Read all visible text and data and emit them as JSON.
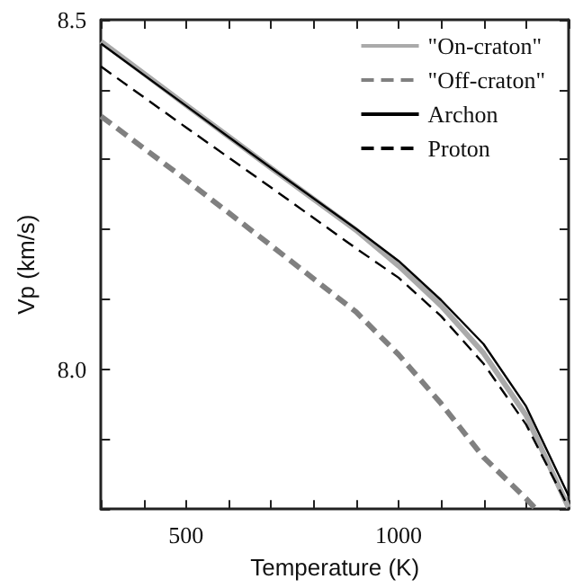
{
  "chart_data": {
    "type": "line",
    "xlabel": "Temperature (K)",
    "ylabel": "Vp (km/s)",
    "x": [
      300,
      500,
      700,
      900,
      1000,
      1100,
      1200,
      1300,
      1400
    ],
    "series": [
      {
        "name": "\"On-craton\"",
        "color": "#aaaaaa",
        "line_style": "solid",
        "values": [
          8.469,
          8.378,
          8.288,
          8.199,
          8.148,
          8.091,
          8.023,
          7.934,
          7.802
        ]
      },
      {
        "name": "\"Off-craton\"",
        "color": "#808080",
        "line_style": "dashed",
        "x": [
          300,
          500,
          700,
          900,
          1000,
          1100,
          1200,
          1300,
          1323
        ],
        "values": [
          8.362,
          8.271,
          8.177,
          8.082,
          8.021,
          7.951,
          7.874,
          7.815,
          7.8
        ]
      },
      {
        "name": "Archon",
        "color": "#000000",
        "line_style": "solid",
        "values": [
          8.466,
          8.377,
          8.288,
          8.201,
          8.155,
          8.099,
          8.036,
          7.947,
          7.819
        ]
      },
      {
        "name": "Proton",
        "color": "#000000",
        "line_style": "dashed",
        "values": [
          8.433,
          8.346,
          8.26,
          8.173,
          8.131,
          8.076,
          8.008,
          7.921,
          7.802
        ]
      }
    ],
    "xlim": [
      300,
      1400
    ],
    "ylim": [
      7.8,
      8.5
    ],
    "xticks": [
      {
        "value": 300,
        "label": null
      },
      {
        "value": 400,
        "label": null
      },
      500,
      {
        "value": 600,
        "label": null
      },
      {
        "value": 700,
        "label": null
      },
      {
        "value": 800,
        "label": null
      },
      {
        "value": 900,
        "label": null
      },
      1000,
      {
        "value": 1100,
        "label": null
      },
      {
        "value": 1200,
        "label": null
      },
      {
        "value": 1300,
        "label": null
      },
      {
        "value": 1400,
        "label": null
      }
    ],
    "yticks": [
      {
        "value": 7.8,
        "label": null
      },
      {
        "value": 7.9,
        "label": null
      },
      {
        "value": 8,
        "label": "8.0"
      },
      {
        "value": 8.1,
        "label": null
      },
      {
        "value": 8.2,
        "label": null
      },
      {
        "value": 8.3,
        "label": null
      },
      {
        "value": 8.4,
        "label": null
      },
      {
        "value": 8.5,
        "label": "8.5"
      }
    ],
    "grid": false,
    "legend": "top right",
    "marker": "none"
  }
}
